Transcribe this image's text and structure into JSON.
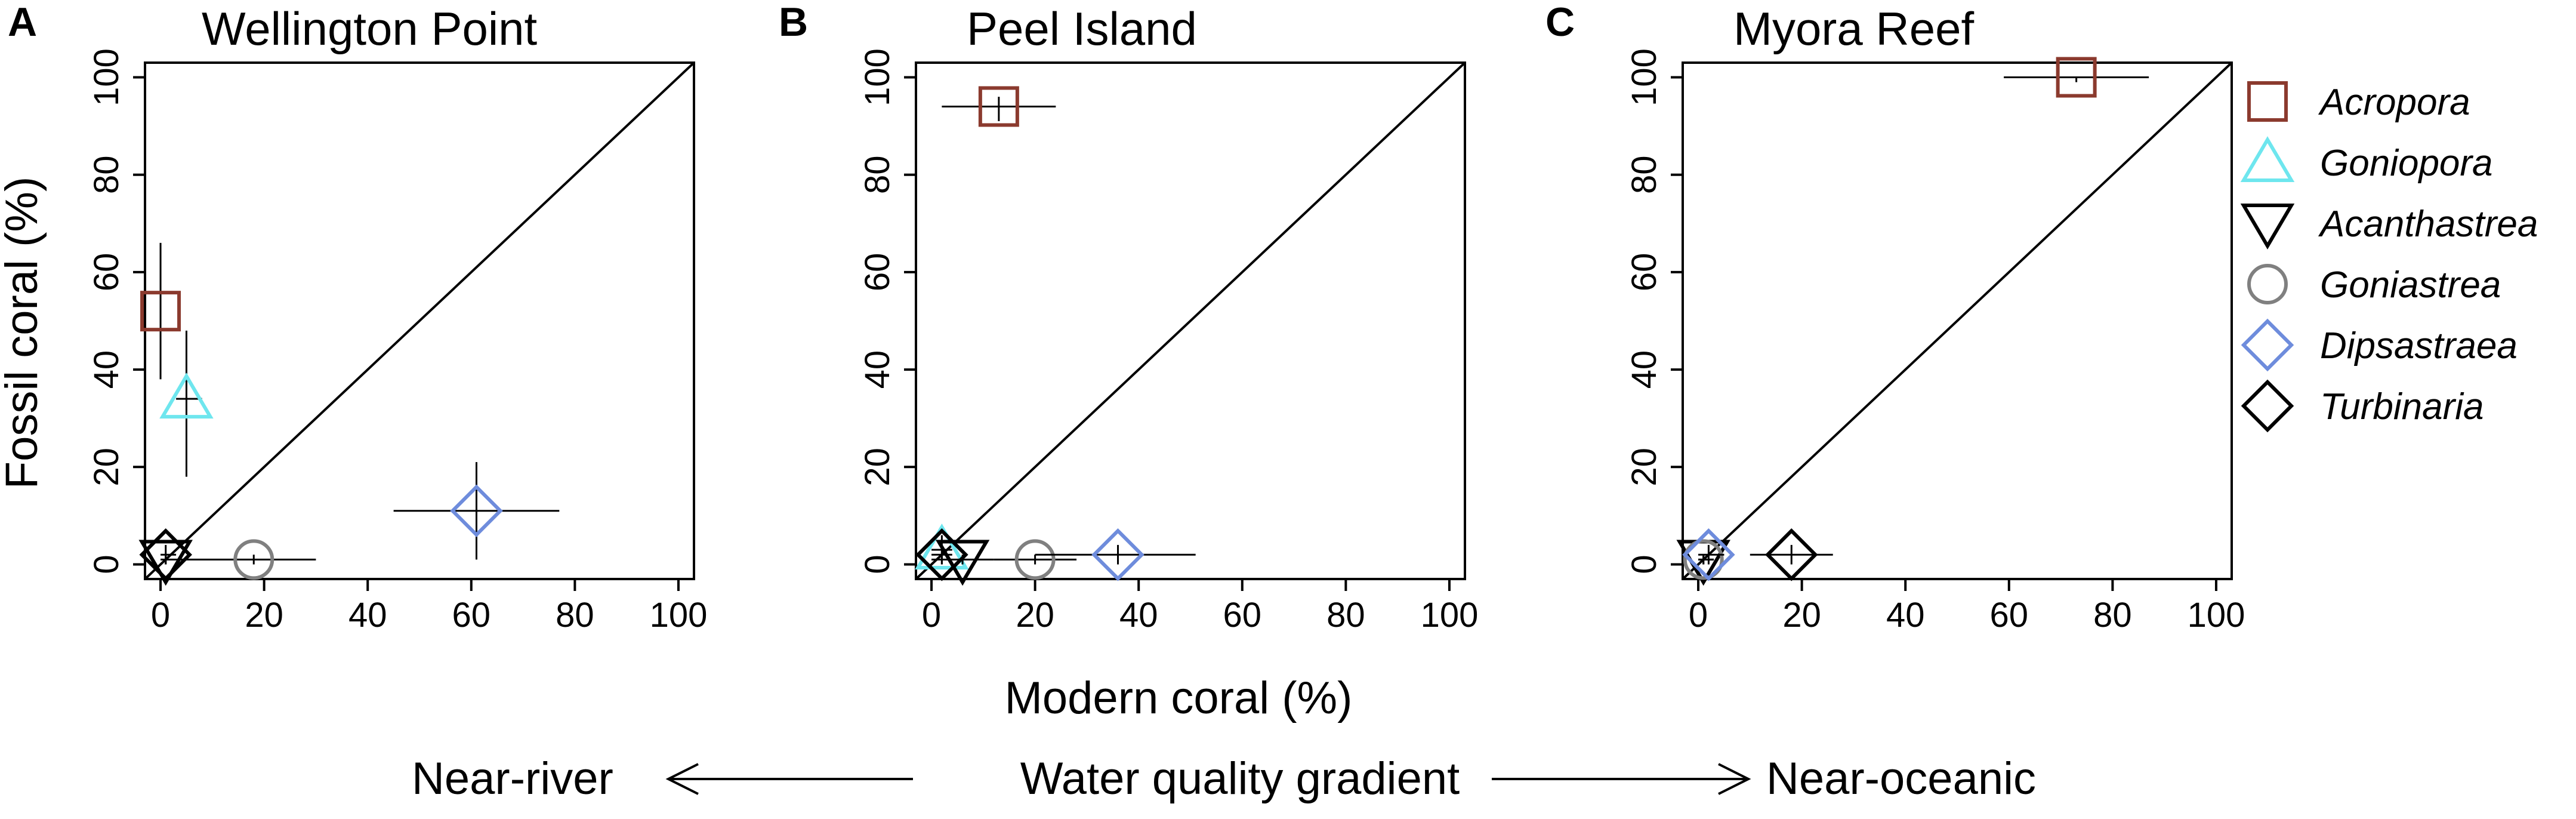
{
  "chart_data": {
    "type": "scatter",
    "x_label": "Modern coral (%)",
    "y_label": "Fossil coral (%)",
    "xlim": [
      -3,
      103
    ],
    "ylim": [
      -3,
      103
    ],
    "x_ticks": [
      0,
      20,
      40,
      60,
      80,
      100
    ],
    "y_ticks": [
      0,
      20,
      40,
      60,
      80,
      100
    ],
    "tick_labels": [
      "0",
      "20",
      "40",
      "60",
      "80",
      "100"
    ],
    "reference_line": "1:1 diagonal",
    "legend_position": "right",
    "species": [
      {
        "name": "Acropora",
        "marker": "square",
        "color": "#8B3A2E"
      },
      {
        "name": "Goniopora",
        "marker": "triangle-up",
        "color": "#6EE6EE"
      },
      {
        "name": "Acanthastrea",
        "marker": "triangle-down",
        "color": "#000000"
      },
      {
        "name": "Goniastrea",
        "marker": "circle",
        "color": "#808080"
      },
      {
        "name": "Dipsastraea",
        "marker": "diamond",
        "color": "#6E8CDC"
      },
      {
        "name": "Turbinaria",
        "marker": "diamond",
        "color": "#000000"
      }
    ],
    "panels": [
      {
        "label": "A",
        "title": "Wellington Point",
        "show_y_label": true,
        "show_x_label": false,
        "points": [
          {
            "species": "Acropora",
            "x": 0,
            "y": 52,
            "x_err": [
              0,
              0
            ],
            "y_err": [
              38,
              66
            ]
          },
          {
            "species": "Goniopora",
            "x": 5,
            "y": 34,
            "x_err": [
              3,
              8
            ],
            "y_err": [
              18,
              48
            ]
          },
          {
            "species": "Acanthastrea",
            "x": 1,
            "y": 1,
            "x_err": [
              0,
              3
            ],
            "y_err": [
              0,
              2
            ]
          },
          {
            "species": "Goniastrea",
            "x": 18,
            "y": 1,
            "x_err": [
              3,
              30
            ],
            "y_err": [
              0,
              2
            ]
          },
          {
            "species": "Dipsastraea",
            "x": 61,
            "y": 11,
            "x_err": [
              45,
              77
            ],
            "y_err": [
              1,
              21
            ]
          },
          {
            "species": "Turbinaria",
            "x": 1,
            "y": 2,
            "x_err": [
              0,
              3
            ],
            "y_err": [
              0,
              4
            ]
          }
        ]
      },
      {
        "label": "B",
        "title": "Peel Island",
        "show_y_label": false,
        "show_x_label": true,
        "points": [
          {
            "species": "Acropora",
            "x": 13,
            "y": 94,
            "x_err": [
              2,
              24
            ],
            "y_err": [
              91,
              96
            ]
          },
          {
            "species": "Goniopora",
            "x": 2,
            "y": 3,
            "x_err": [
              0,
              4
            ],
            "y_err": [
              0,
              6
            ]
          },
          {
            "species": "Acanthastrea",
            "x": 6,
            "y": 1,
            "x_err": [
              0,
              12
            ],
            "y_err": [
              0,
              2
            ]
          },
          {
            "species": "Goniastrea",
            "x": 20,
            "y": 1,
            "x_err": [
              12,
              28
            ],
            "y_err": [
              0,
              2
            ]
          },
          {
            "species": "Dipsastraea",
            "x": 36,
            "y": 2,
            "x_err": [
              20,
              51
            ],
            "y_err": [
              0,
              4
            ]
          },
          {
            "species": "Turbinaria",
            "x": 2,
            "y": 2,
            "x_err": [
              0,
              4
            ],
            "y_err": [
              0,
              4
            ]
          }
        ]
      },
      {
        "label": "C",
        "title": "Myora Reef",
        "show_y_label": false,
        "show_x_label": false,
        "points": [
          {
            "species": "Acropora",
            "x": 73,
            "y": 100,
            "x_err": [
              59,
              87
            ],
            "y_err": [
              99,
              100
            ]
          },
          {
            "species": "Acanthastrea",
            "x": 1,
            "y": 1,
            "x_err": [
              0,
              3
            ],
            "y_err": [
              0,
              2
            ]
          },
          {
            "species": "Goniastrea",
            "x": 1,
            "y": 1,
            "x_err": [
              0,
              3
            ],
            "y_err": [
              0,
              2
            ]
          },
          {
            "species": "Dipsastraea",
            "x": 2,
            "y": 2,
            "x_err": [
              0,
              5
            ],
            "y_err": [
              0,
              4
            ]
          },
          {
            "species": "Turbinaria",
            "x": 18,
            "y": 2,
            "x_err": [
              10,
              26
            ],
            "y_err": [
              0,
              4
            ]
          }
        ]
      }
    ],
    "gradient": {
      "left": "Near-river",
      "center": "Water quality gradient",
      "right": "Near-oceanic"
    }
  }
}
